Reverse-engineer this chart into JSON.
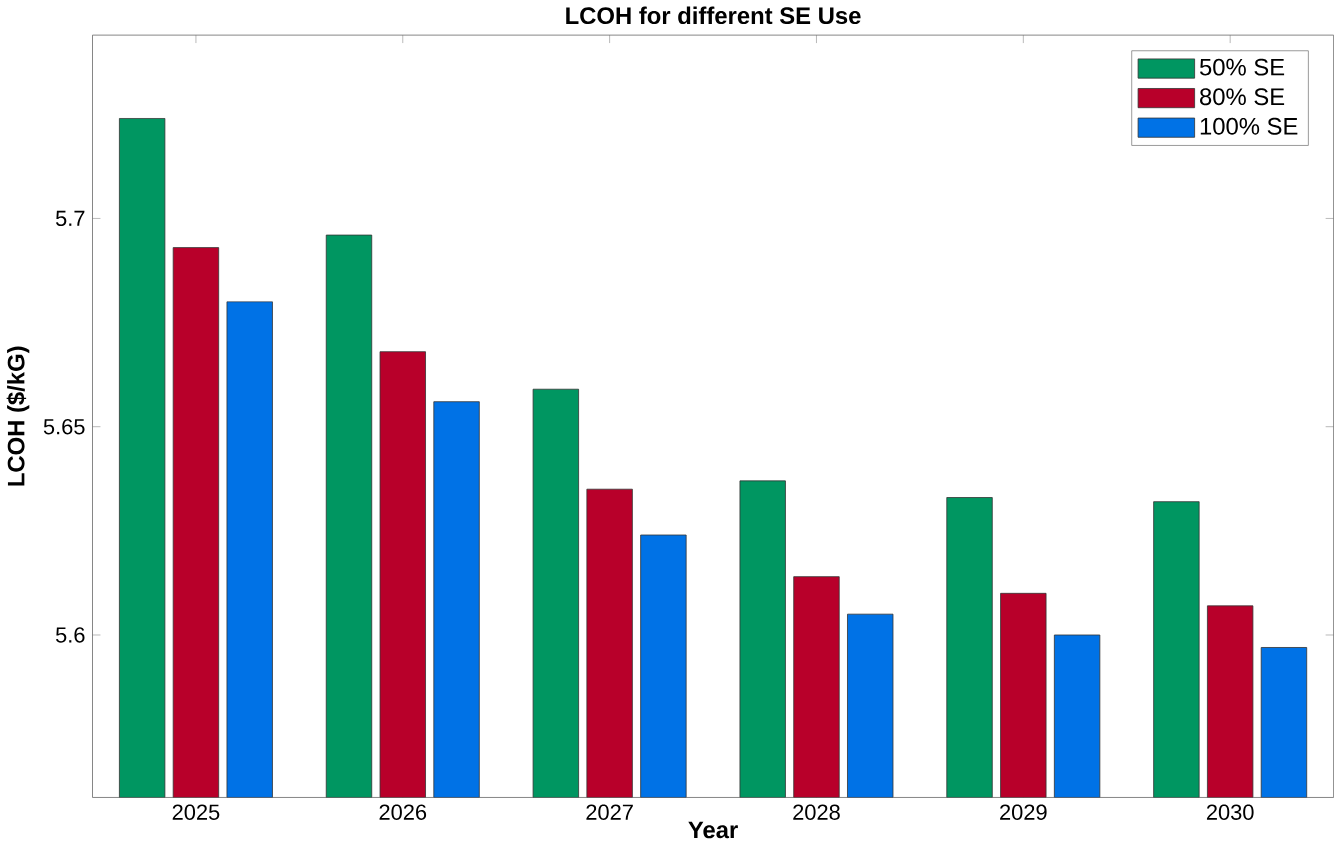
{
  "chart_data": {
    "type": "bar",
    "title": "LCOH for different SE Use",
    "xlabel": "Year",
    "ylabel": "LCOH ($/kG)",
    "categories": [
      "2025",
      "2026",
      "2027",
      "2028",
      "2029",
      "2030"
    ],
    "series": [
      {
        "name": "50% SE",
        "color": "#009661",
        "values": [
          5.724,
          5.696,
          5.659,
          5.637,
          5.633,
          5.632
        ]
      },
      {
        "name": "80% SE",
        "color": "#b8002a",
        "values": [
          5.693,
          5.668,
          5.635,
          5.614,
          5.61,
          5.607
        ]
      },
      {
        "name": "100% SE",
        "color": "#0072e6",
        "values": [
          5.68,
          5.656,
          5.624,
          5.605,
          5.6,
          5.597
        ]
      }
    ],
    "ylim": [
      5.561,
      5.744
    ],
    "yticks": [
      5.6,
      5.65,
      5.7
    ],
    "grid": false,
    "legend": "top right"
  }
}
